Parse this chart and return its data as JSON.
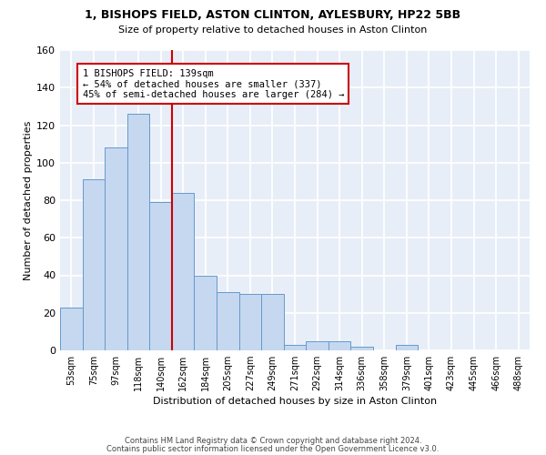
{
  "title1": "1, BISHOPS FIELD, ASTON CLINTON, AYLESBURY, HP22 5BB",
  "title2": "Size of property relative to detached houses in Aston Clinton",
  "xlabel": "Distribution of detached houses by size in Aston Clinton",
  "ylabel": "Number of detached properties",
  "categories": [
    "53sqm",
    "75sqm",
    "97sqm",
    "118sqm",
    "140sqm",
    "162sqm",
    "184sqm",
    "205sqm",
    "227sqm",
    "249sqm",
    "271sqm",
    "292sqm",
    "314sqm",
    "336sqm",
    "358sqm",
    "379sqm",
    "401sqm",
    "423sqm",
    "445sqm",
    "466sqm",
    "488sqm"
  ],
  "values": [
    23,
    91,
    108,
    126,
    79,
    84,
    40,
    31,
    30,
    30,
    3,
    5,
    5,
    2,
    0,
    3,
    0,
    0,
    0,
    0,
    0
  ],
  "bar_color": "#c5d8f0",
  "bar_edge_color": "#6699cc",
  "bar_width": 1.0,
  "vline_x_index": 4,
  "vline_color": "#cc0000",
  "annotation_line1": "1 BISHOPS FIELD: 139sqm",
  "annotation_line2": "← 54% of detached houses are smaller (337)",
  "annotation_line3": "45% of semi-detached houses are larger (284) →",
  "annotation_box_color": "white",
  "annotation_box_edge": "#cc0000",
  "ylim": [
    0,
    160
  ],
  "yticks": [
    0,
    20,
    40,
    60,
    80,
    100,
    120,
    140,
    160
  ],
  "background_color": "#e8eef8",
  "grid_color": "white",
  "footer1": "Contains HM Land Registry data © Crown copyright and database right 2024.",
  "footer2": "Contains public sector information licensed under the Open Government Licence v3.0."
}
